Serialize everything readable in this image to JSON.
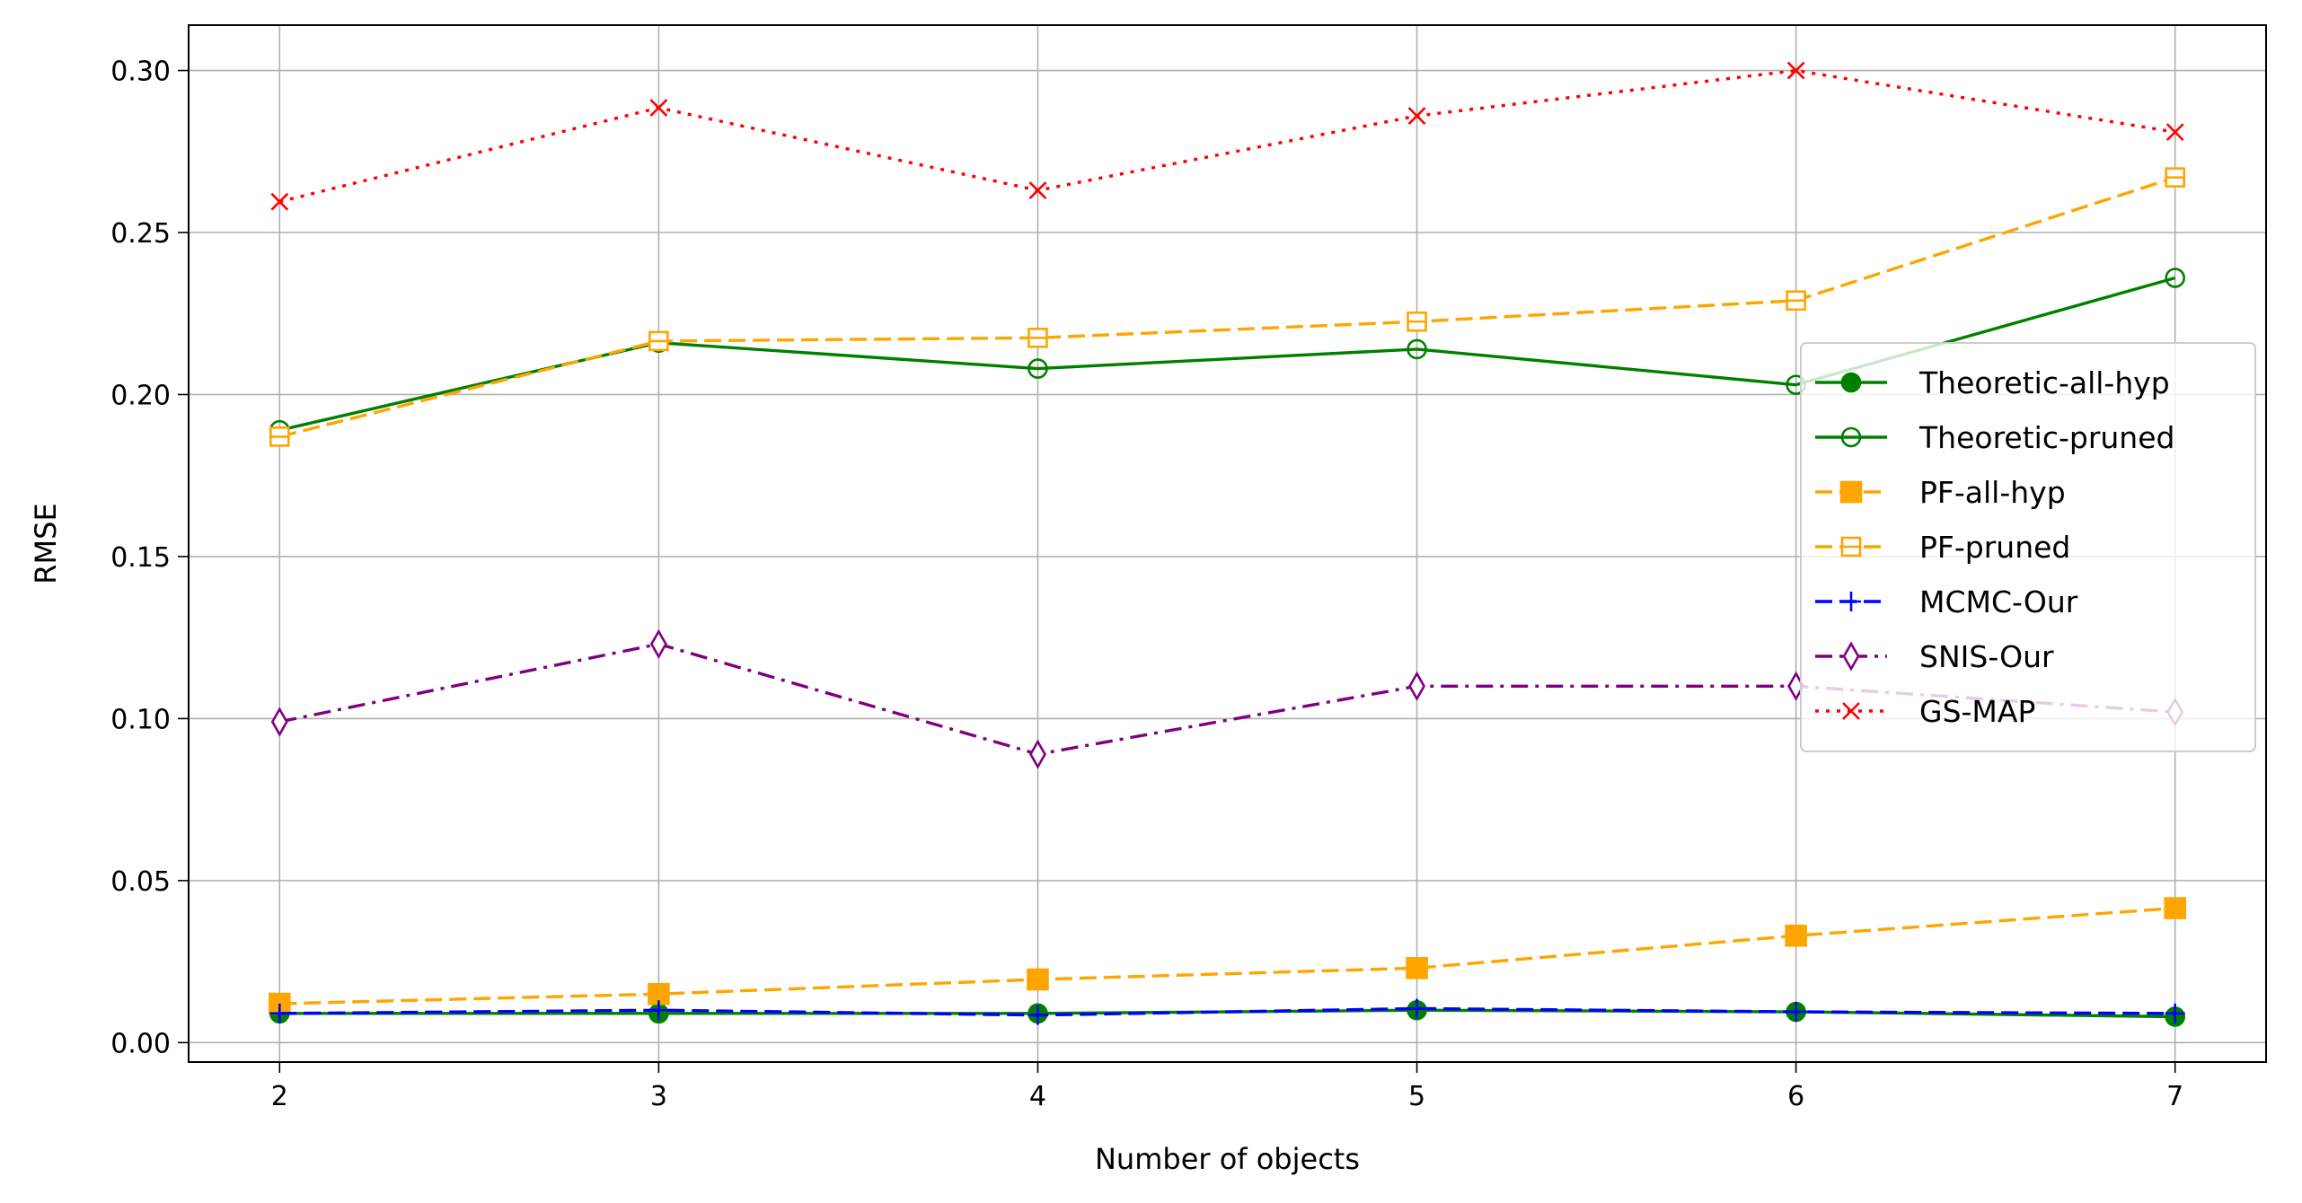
{
  "chart_data": {
    "type": "line",
    "title": "",
    "xlabel": "Number of objects",
    "ylabel": "RMSE",
    "x": [
      2,
      3,
      4,
      5,
      6,
      7
    ],
    "xlim": [
      1.76,
      7.24
    ],
    "ylim": [
      -0.006,
      0.314
    ],
    "xticks": [
      "2",
      "3",
      "4",
      "5",
      "6",
      "7"
    ],
    "yticks": [
      "0.00",
      "0.05",
      "0.10",
      "0.15",
      "0.20",
      "0.25",
      "0.30"
    ],
    "grid": true,
    "legend_position": "center-right",
    "series": [
      {
        "name": "Theoretic-all-hyp",
        "values": [
          0.009,
          0.009,
          0.009,
          0.01,
          0.0095,
          0.008
        ],
        "color": "#008000",
        "linestyle": "solid",
        "marker": "circle",
        "filled": true
      },
      {
        "name": "Theoretic-pruned",
        "values": [
          0.189,
          0.216,
          0.208,
          0.214,
          0.203,
          0.236
        ],
        "color": "#008000",
        "linestyle": "solid",
        "marker": "circle",
        "filled": false
      },
      {
        "name": "PF-all-hyp",
        "values": [
          0.012,
          0.015,
          0.0195,
          0.023,
          0.033,
          0.0415
        ],
        "color": "#ffa500",
        "linestyle": "dashed",
        "marker": "square",
        "filled": true
      },
      {
        "name": "PF-pruned",
        "values": [
          0.187,
          0.2165,
          0.2175,
          0.2225,
          0.229,
          0.267
        ],
        "color": "#ffa500",
        "linestyle": "dashed",
        "marker": "square-half",
        "filled": false
      },
      {
        "name": "MCMC-Our",
        "values": [
          0.009,
          0.01,
          0.0085,
          0.0105,
          0.0095,
          0.009
        ],
        "color": "#0000ff",
        "linestyle": "dashed",
        "marker": "plus",
        "filled": false
      },
      {
        "name": "SNIS-Our",
        "values": [
          0.099,
          0.123,
          0.089,
          0.11,
          0.11,
          0.102
        ],
        "color": "#800080",
        "linestyle": "dashdot",
        "marker": "thin-diamond",
        "filled": false
      },
      {
        "name": "GS-MAP",
        "values": [
          0.2595,
          0.2885,
          0.263,
          0.286,
          0.3,
          0.281
        ],
        "color": "#ff0000",
        "linestyle": "dotted",
        "marker": "x",
        "filled": false
      }
    ]
  }
}
